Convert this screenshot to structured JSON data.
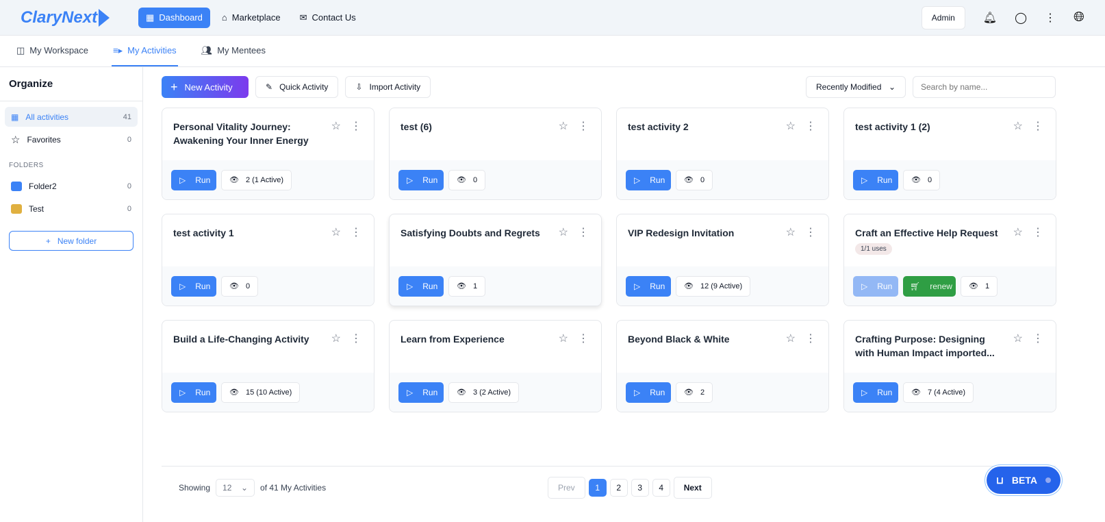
{
  "header": {
    "logo": "ClaryNext",
    "nav": [
      {
        "label": "Dashboard",
        "icon": "grid-icon",
        "active": true
      },
      {
        "label": "Marketplace",
        "icon": "store-icon"
      },
      {
        "label": "Contact Us",
        "icon": "mail-icon"
      }
    ],
    "admin": "Admin"
  },
  "tabs": [
    {
      "label": "My Workspace",
      "icon": "briefcase-icon"
    },
    {
      "label": "My Activities",
      "icon": "list-play-icon",
      "active": true
    },
    {
      "label": "My Mentees",
      "icon": "users-icon"
    }
  ],
  "sidebar": {
    "title": "Organize",
    "items": [
      {
        "label": "All activities",
        "count": "41"
      },
      {
        "label": "Favorites",
        "count": "0"
      }
    ],
    "folders_label": "FOLDERS",
    "folders": [
      {
        "label": "Folder2",
        "count": "0",
        "color": "#3b82f6"
      },
      {
        "label": "Test",
        "count": "0",
        "color": "#e0b040"
      }
    ],
    "new_folder": "New folder"
  },
  "toolbar": {
    "new_activity": "New Activity",
    "quick_activity": "Quick Activity",
    "import_activity": "Import Activity",
    "sort": "Recently Modified",
    "search_placeholder": "Search by name..."
  },
  "run_label": "Run",
  "renew_label": "renew",
  "activities": [
    {
      "title": "Personal Vitality Journey: Awakening Your Inner Energy",
      "views": "2 (1 Active)"
    },
    {
      "title": "test (6)",
      "views": "0"
    },
    {
      "title": "test activity 2",
      "views": "0"
    },
    {
      "title": "test activity 1 (2)",
      "views": "0"
    },
    {
      "title": "test activity 1",
      "views": "0"
    },
    {
      "title": "Satisfying Doubts and Regrets",
      "views": "1"
    },
    {
      "title": "VIP Redesign Invitation",
      "views": "12 (9 Active)"
    },
    {
      "title": "Craft an Effective Help Request",
      "views": "1",
      "uses": "1/1 uses",
      "run_disabled": true,
      "renew": true
    },
    {
      "title": "Build a Life-Changing Activity",
      "views": "15 (10 Active)"
    },
    {
      "title": "Learn from Experience",
      "views": "3 (2 Active)"
    },
    {
      "title": "Beyond Black & White",
      "views": "2"
    },
    {
      "title": "Crafting Purpose: Designing with Human Impact imported...",
      "views": "7 (4 Active)"
    }
  ],
  "footer": {
    "showing": "Showing",
    "per_page": "12",
    "of_text": "of 41 My Activities",
    "prev": "Prev",
    "pages": [
      "1",
      "2",
      "3",
      "4"
    ],
    "current_page": "1",
    "next": "Next"
  },
  "beta": "BETA"
}
